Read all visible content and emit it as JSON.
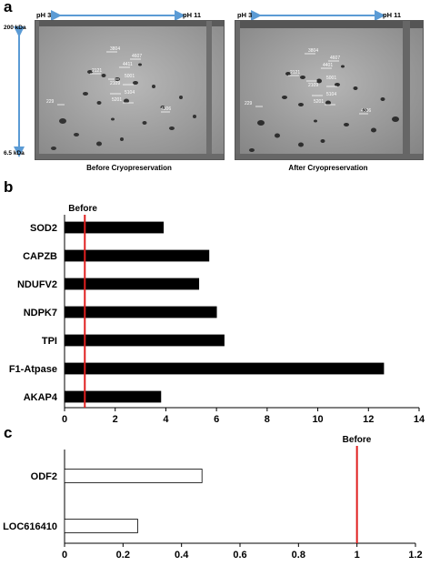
{
  "panels": {
    "a": {
      "letter": "a",
      "ph_left": "pH 3",
      "ph_right": "pH 11",
      "kda_top": "200 kDa",
      "kda_bottom": "6.5 kDa",
      "gel_before_caption": "Before Cryopreservation",
      "gel_after_caption": "After Cryopreservation",
      "spot_labels": [
        "3804",
        "4607",
        "4411",
        "4401",
        "2121",
        "5001",
        "5201",
        "5104",
        "2109",
        "4306",
        "229"
      ]
    },
    "b": {
      "letter": "b"
    },
    "c": {
      "letter": "c"
    }
  },
  "chart_data": [
    {
      "type": "bar",
      "orientation": "horizontal",
      "categories": [
        "SOD2",
        "CAPZB",
        "NDUFV2",
        "NDPK7",
        "TPI",
        "F1-Atpase",
        "AKAP4"
      ],
      "values": [
        3.9,
        5.7,
        5.3,
        6.0,
        6.3,
        12.6,
        3.8
      ],
      "xlim": [
        0,
        14
      ],
      "xticks": [
        0,
        2,
        4,
        6,
        8,
        10,
        12,
        14
      ],
      "reference_line": {
        "value": 0.8,
        "label": "Before",
        "color": "#e02020"
      },
      "bar_color": "#000000",
      "grid": false
    },
    {
      "type": "bar",
      "orientation": "horizontal",
      "categories": [
        "ODF2",
        "LOC616410"
      ],
      "values": [
        0.47,
        0.25
      ],
      "xlim": [
        0,
        1.2
      ],
      "xticks": [
        "0",
        "0.2",
        "0.4",
        "0.6",
        "0.8",
        "1",
        "1.2"
      ],
      "reference_line": {
        "value": 1.0,
        "label": "Before",
        "color": "#e02020"
      },
      "bar_color": "#ffffff",
      "grid": false
    }
  ]
}
